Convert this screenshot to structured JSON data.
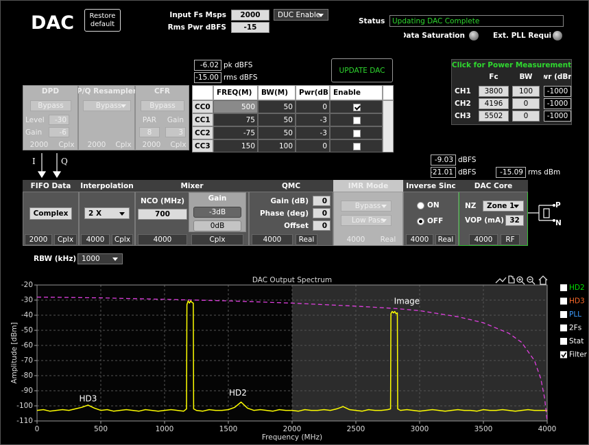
{
  "header": {
    "title": "DAC",
    "restore_button": "Restore default",
    "input_fs_label": "Input Fs Msps",
    "input_fs": 2000,
    "rms_pwr_label": "Rms Pwr dBFS",
    "rms_pwr": -15,
    "duc_select": "DUC Enable",
    "status_label": "Status",
    "status": "Updating DAC Complete",
    "data_saturation": "Data Saturation",
    "ext_pll": "Ext. PLL Required"
  },
  "levels": {
    "pk": -6.02,
    "pk_unit": "pk dBFS",
    "rms": "-15.00",
    "rms_unit": "rms dBFS",
    "update_button": "UPDATE DAC"
  },
  "power_table": {
    "title": "Click for Power Measurement",
    "columns": [
      "Fc",
      "BW",
      "Pwr (dBm)"
    ],
    "rows": [
      {
        "name": "CH1",
        "values": [
          3800,
          100,
          -1000
        ]
      },
      {
        "name": "CH2",
        "values": [
          4196,
          0,
          -1000
        ]
      },
      {
        "name": "CH3",
        "values": [
          5502,
          0,
          -1000
        ]
      }
    ]
  },
  "dpd": {
    "title": "DPD",
    "button": "Bypass",
    "level_label": "Level",
    "level": -30,
    "gain_label": "Gain",
    "gain": -6,
    "rate": 2000,
    "format": "Cplx"
  },
  "resampler": {
    "title": "P/Q Resampler",
    "select": "Bypass",
    "rate": 2000,
    "format": "Cplx"
  },
  "cfr": {
    "title": "CFR",
    "button": "Bypass",
    "par_label": "PAR",
    "gain_label": "Gain",
    "par": 8,
    "gain": 3,
    "rate": 2000,
    "format": "Cplx"
  },
  "carriers": {
    "columns": [
      "FREQ(M)",
      "BW(M)",
      "Pwr(dB)",
      "Enable"
    ],
    "rows": [
      {
        "name": "CC0",
        "freq": 500,
        "bw": 50,
        "pwr": 0,
        "enabled": true
      },
      {
        "name": "CC1",
        "freq": 75,
        "bw": 50,
        "pwr": -3,
        "enabled": false
      },
      {
        "name": "CC2",
        "freq": -75,
        "bw": 50,
        "pwr": -3,
        "enabled": false
      },
      {
        "name": "CC3",
        "freq": 150,
        "bw": 100,
        "pwr": 0,
        "enabled": false
      }
    ]
  },
  "iq": [
    "I",
    "Q"
  ],
  "sinc_levels": {
    "pk": -9.03,
    "pk_unit": "dBFS",
    "rms": -21.01,
    "rms_unit": "dBFS",
    "rms_dbm": -15.09,
    "rms_dbm_unit": "rms dBm"
  },
  "fifo": {
    "title": "FIFO Data",
    "button": "Complex",
    "rate": 2000,
    "format": "Cplx"
  },
  "interpolation": {
    "title": "Interpolation",
    "select": "2 X",
    "rate": 4000,
    "format": "Cplx"
  },
  "mixer": {
    "title": "Mixer",
    "nco_label": "NCO (MHz)",
    "nco": 700,
    "gain_title": "Gain",
    "gain_options": [
      "-3dB",
      "0dB"
    ],
    "gain_selected": 0,
    "rate": 4000,
    "format": "Cplx"
  },
  "qmc": {
    "title": "QMC",
    "fields": [
      {
        "label": "Gain (dB)",
        "value": 0
      },
      {
        "label": "Phase (deg)",
        "value": 0
      },
      {
        "label": "Offset",
        "value": 0
      }
    ],
    "rate": 4000,
    "format": "Real"
  },
  "imr": {
    "title": "IMR Mode",
    "selects": [
      "Bypass",
      "Low Pass"
    ],
    "rate": 4000,
    "format": "Real"
  },
  "inverse_sinc": {
    "title": "Inverse Sinc",
    "options": [
      "ON",
      "OFF"
    ],
    "selected": 1,
    "rate": 4000,
    "format": "Real"
  },
  "dac_core": {
    "title": "DAC Core",
    "nz_label": "NZ",
    "nz": "Zone 1",
    "vop_label": "VOP (mA)",
    "vop": 32,
    "rate": 4000,
    "format": "RF"
  },
  "output": {
    "p": "P",
    "n": "N"
  },
  "rbw": {
    "label": "RBW (kHz)",
    "value": 1000
  },
  "chart_data": {
    "type": "line",
    "title": "DAC Output Spectrum",
    "x_label": "Frequency (MHz)",
    "y_label": "Amplitude [dBm]",
    "xlim": [
      0,
      4000
    ],
    "ylim": [
      -110,
      -20
    ],
    "xticks": [
      0,
      500,
      1000,
      1500,
      2000,
      2500,
      3000,
      3500,
      4000
    ],
    "yticks": [
      -110,
      -100,
      -90,
      -80,
      -70,
      -60,
      -50,
      -40,
      -30,
      -20
    ],
    "grid": true,
    "highlight_x": [
      2000,
      4000
    ],
    "series": [
      {
        "color": "#ffff00",
        "x": [
          0,
          50,
          100,
          150,
          200,
          250,
          300,
          350,
          400,
          450,
          500,
          550,
          600,
          650,
          700,
          750,
          800,
          850,
          900,
          950,
          1000,
          1050,
          1100,
          1150,
          1172,
          1175,
          1185,
          1195,
          1205,
          1215,
          1225,
          1228,
          1250,
          1300,
          1350,
          1400,
          1450,
          1500,
          1550,
          1600,
          1650,
          1700,
          1750,
          1800,
          1850,
          1900,
          1950,
          2000,
          2050,
          2100,
          2150,
          2200,
          2250,
          2300,
          2350,
          2400,
          2450,
          2500,
          2550,
          2600,
          2650,
          2700,
          2750,
          2772,
          2775,
          2785,
          2795,
          2805,
          2815,
          2825,
          2828,
          2850,
          2900,
          2950,
          3000,
          3050,
          3100,
          3150,
          3200,
          3250,
          3300,
          3350,
          3400,
          3450,
          3500,
          3550,
          3600,
          3650,
          3700,
          3750,
          3800,
          3850,
          3900,
          3950,
          4000
        ],
        "values": [
          -103,
          -102.5,
          -103.5,
          -103,
          -102.5,
          -103,
          -102,
          -101,
          -99.5,
          -101.5,
          -103,
          -102.5,
          -103.5,
          -103,
          -102.5,
          -103,
          -103.5,
          -102.5,
          -103,
          -103.5,
          -103,
          -102.5,
          -103,
          -103.5,
          -102,
          -33,
          -30.5,
          -32,
          -30.5,
          -31.5,
          -32,
          -102,
          -103,
          -103.5,
          -102.5,
          -103,
          -103,
          -102.5,
          -101,
          -97.5,
          -101.5,
          -103,
          -102.5,
          -103,
          -103.5,
          -102.5,
          -103,
          -103,
          -103.5,
          -102.5,
          -103,
          -103,
          -102.5,
          -103,
          -102,
          -100.5,
          -102.5,
          -103,
          -103.5,
          -102.5,
          -103,
          -103,
          -102.5,
          -102,
          -39,
          -37.5,
          -38.5,
          -37.5,
          -39,
          -38.5,
          -102,
          -103,
          -102.5,
          -103,
          -103.5,
          -103,
          -102.5,
          -103,
          -103.5,
          -103,
          -102.5,
          -103,
          -103,
          -103.5,
          -102.5,
          -103,
          -103,
          -102.5,
          -103,
          -103.5,
          -103,
          -102.5,
          -103,
          -103,
          -103
        ]
      },
      {
        "color": "#e040e0",
        "dashed": true,
        "x": [
          0,
          500,
          1000,
          1500,
          2000,
          2500,
          2800,
          3000,
          3300,
          3500,
          3700,
          3800,
          3900,
          3950,
          3980,
          4000
        ],
        "values": [
          -28,
          -28.5,
          -29.5,
          -30.5,
          -32,
          -34,
          -35.5,
          -37,
          -41,
          -45,
          -52,
          -58,
          -70,
          -82,
          -95,
          -110
        ]
      }
    ],
    "annotations": [
      {
        "text": "HD3",
        "x": 400,
        "y": -95.5
      },
      {
        "text": "HD2",
        "x": 1575,
        "y": -91.5
      },
      {
        "text": "Image",
        "x": 2900,
        "y": -31
      }
    ],
    "toggles": [
      {
        "label": "HD2",
        "color": "#00e000",
        "checked": false
      },
      {
        "label": "HD3",
        "color": "#ff6a2a",
        "checked": false
      },
      {
        "label": "PLL",
        "color": "#3c9cff",
        "checked": false
      },
      {
        "label": "2Fs",
        "color": "#ffffff",
        "checked": false
      },
      {
        "label": "Stat",
        "color": "#ffffff",
        "checked": false
      },
      {
        "label": "Filter",
        "color": "#ffffff",
        "checked": true
      }
    ]
  }
}
